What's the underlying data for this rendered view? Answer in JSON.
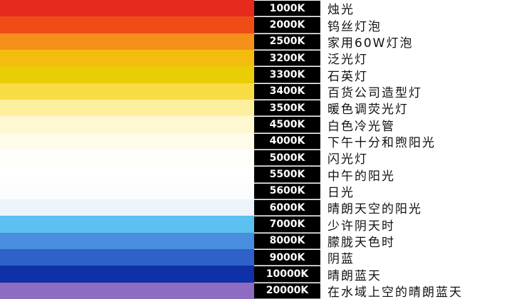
{
  "rows": [
    {
      "temperature": "1000K",
      "description": "烛光",
      "color": "#e62a1e"
    },
    {
      "temperature": "2000K",
      "description": "钨丝灯泡",
      "color": "#f04c16"
    },
    {
      "temperature": "2500K",
      "description": "家用60W灯泡",
      "color": "#f5901a"
    },
    {
      "temperature": "3200K",
      "description": "泛光灯",
      "color": "#f5bc10"
    },
    {
      "temperature": "3300K",
      "description": "石英灯",
      "color": "#e9cd05"
    },
    {
      "temperature": "3400K",
      "description": "百货公司造型灯",
      "color": "#f8dc44"
    },
    {
      "temperature": "3500K",
      "description": "暖色调荧光灯",
      "color": "#fcf0a0"
    },
    {
      "temperature": "4500K",
      "description": "白色冷光管",
      "color": "#fdf8cf"
    },
    {
      "temperature": "4000K",
      "description": "下午十分和煦阳光",
      "color": "#fffbea"
    },
    {
      "temperature": "5000K",
      "description": "闪光灯",
      "color": "#fffefa"
    },
    {
      "temperature": "5500K",
      "description": "中午的阳光",
      "color": "#ffffff"
    },
    {
      "temperature": "5600K",
      "description": "日光",
      "color": "#fcfdff"
    },
    {
      "temperature": "6000K",
      "description": "晴朗天空的阳光",
      "color": "#eef4fc"
    },
    {
      "temperature": "7000K",
      "description": "少许阴天时",
      "color": "#5cc0f0"
    },
    {
      "temperature": "8000K",
      "description": "朦胧天色时",
      "color": "#4a8ee0"
    },
    {
      "temperature": "9000K",
      "description": "阴蓝",
      "color": "#2e62c8"
    },
    {
      "temperature": "10000K",
      "description": "晴朗蓝天",
      "color": "#1030a8"
    },
    {
      "temperature": "20000K",
      "description": "在水域上空的晴朗蓝天",
      "color": "#8e6cc0"
    }
  ]
}
